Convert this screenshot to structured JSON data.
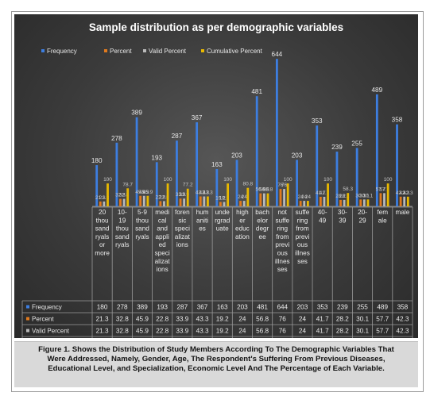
{
  "chart_data": {
    "type": "bar",
    "title": "Sample distribution as per demographic variables",
    "categories": [
      "20 thousand ryals or more",
      "10-19 thousand ryals",
      "5-9 thousand ryals",
      "medical and applied specializations",
      "forensic specializations",
      "humanities",
      "undergraduate",
      "higher education",
      "bachelor degree",
      "not suffering from previous illnesses",
      "suffering from previous illnesses",
      "40-49",
      "30-39",
      "20-29",
      "female",
      "male"
    ],
    "category_display": [
      [
        "20",
        "thou",
        "sand",
        "ryals",
        "or",
        "more"
      ],
      [
        "10-",
        "19",
        "thou",
        "sand",
        "ryals"
      ],
      [
        "5-9",
        "thou",
        "sand",
        "ryals"
      ],
      [
        "medi",
        "cal",
        "and",
        "appli",
        "ed",
        "speci",
        "alizat",
        "ions"
      ],
      [
        "foren",
        "sic",
        "speci",
        "alizat",
        "ions"
      ],
      [
        "hum",
        "aniti",
        "es"
      ],
      [
        "unde",
        "rgrad",
        "uate"
      ],
      [
        "high",
        "er",
        "educ",
        "ation"
      ],
      [
        "bach",
        "elor",
        "degr",
        "ee"
      ],
      [
        "not",
        "suffe",
        "ring",
        "from",
        "previ",
        "ous",
        "illnes",
        "ses"
      ],
      [
        "suffe",
        "ring",
        "from",
        "previ",
        "ous",
        "illnes",
        "ses"
      ],
      [
        "40-",
        "49"
      ],
      [
        "30-",
        "39"
      ],
      [
        "20-",
        "29"
      ],
      [
        "fem",
        "ale"
      ],
      [
        "male"
      ]
    ],
    "series": [
      {
        "name": "Frequency",
        "values": [
          180,
          278,
          389,
          193,
          287,
          367,
          163,
          203,
          481,
          644,
          203,
          353,
          239,
          255,
          489,
          358
        ]
      },
      {
        "name": "Percent",
        "values": [
          21.3,
          32.8,
          45.9,
          22.8,
          33.9,
          43.3,
          19.2,
          24,
          56.8,
          76,
          24,
          41.7,
          28.2,
          30.1,
          57.7,
          42.3
        ]
      },
      {
        "name": "Valid Percent",
        "values": [
          21.3,
          32.8,
          45.9,
          22.8,
          33.9,
          43.3,
          19.2,
          24,
          56.8,
          76,
          24,
          41.7,
          28.2,
          30.1,
          57.7,
          42.3
        ]
      },
      {
        "name": "Cumulative Percent",
        "values": [
          100,
          78.7,
          45.9,
          100,
          77.2,
          43.3,
          100,
          80.8,
          56.8,
          100,
          24,
          100,
          58.3,
          30.1,
          100,
          42.3
        ]
      }
    ],
    "series_colors": [
      "#3d7ee0",
      "#e07a1e",
      "#b9b9b9",
      "#e8b800"
    ],
    "ylim": [
      0,
      700
    ],
    "grid": false,
    "legend_position": "top",
    "table_below": true
  },
  "caption": "Figure 1. Shows the Distribution of Study Members According To The Demographic Variables That Were Addressed, Namely, Gender, Age, The Respondent's Suffering From Previous Diseases, Educational Level, and Specialization, Economic Level And The Percentage of Each Variable."
}
